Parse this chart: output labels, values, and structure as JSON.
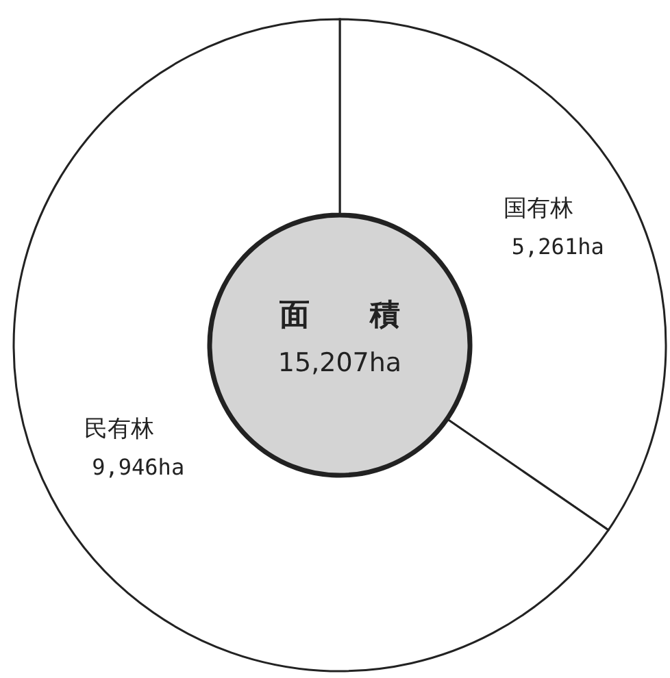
{
  "chart_data": {
    "type": "donut",
    "categories": [
      "国有林",
      "民有林"
    ],
    "values": [
      5261,
      9946
    ],
    "colors": [
      "#ffffff",
      "#ffffff"
    ],
    "value_labels": [
      "5,261ha",
      "9,946ha"
    ],
    "annotations": [
      "面　　積",
      "15,207ha"
    ]
  }
}
